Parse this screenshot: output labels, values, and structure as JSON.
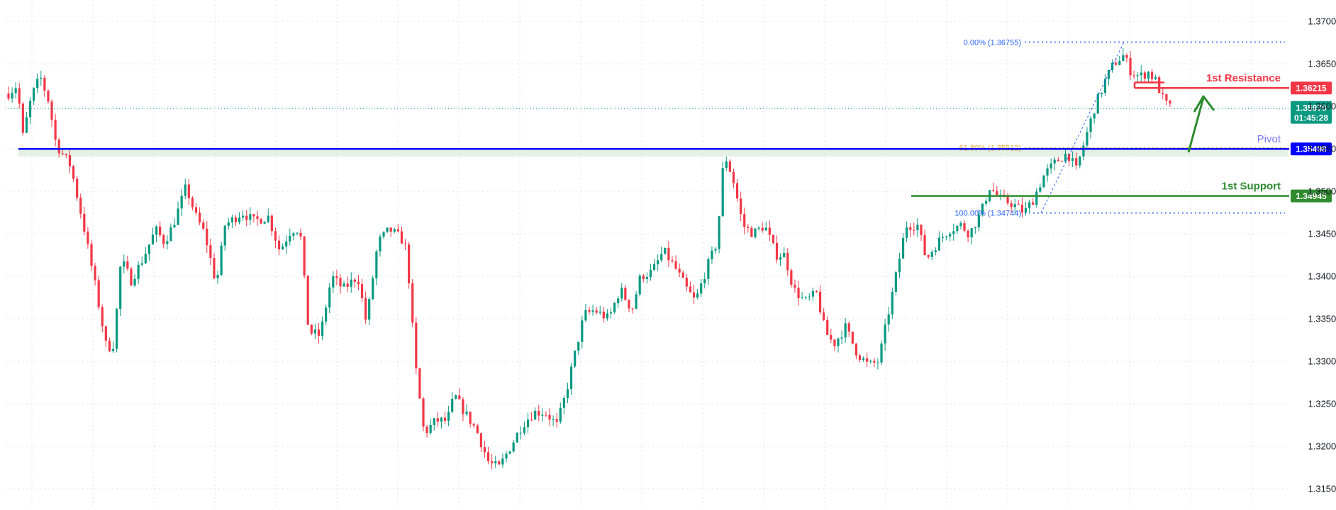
{
  "chart_data": {
    "type": "candlestick",
    "title": "",
    "xlabel": "",
    "ylabel": "",
    "ylim": [
      1.3125,
      1.3725
    ],
    "grid": true,
    "y_ticks": [
      "1.37000",
      "1.36500",
      "1.36000",
      "1.35500",
      "1.35000",
      "1.34500",
      "1.34000",
      "1.33500",
      "1.33000",
      "1.32500",
      "1.32000",
      "1.31500"
    ],
    "y_tick_values": [
      1.37,
      1.365,
      1.36,
      1.355,
      1.35,
      1.345,
      1.34,
      1.335,
      1.33,
      1.325,
      1.32,
      1.315
    ],
    "price_path": [
      [
        0,
        1.3615
      ],
      [
        0.6,
        1.3625
      ],
      [
        1.0,
        1.3565
      ],
      [
        1.6,
        1.3612
      ],
      [
        2.2,
        1.3635
      ],
      [
        2.8,
        1.3605
      ],
      [
        3.3,
        1.3555
      ],
      [
        4.3,
        1.353
      ],
      [
        5.2,
        1.346
      ],
      [
        6.0,
        1.339
      ],
      [
        6.8,
        1.3315
      ],
      [
        7.3,
        1.332
      ],
      [
        7.8,
        1.342
      ],
      [
        8.5,
        1.3395
      ],
      [
        9.3,
        1.342
      ],
      [
        10.2,
        1.3455
      ],
      [
        10.8,
        1.344
      ],
      [
        11.4,
        1.346
      ],
      [
        12.3,
        1.3505
      ],
      [
        13.0,
        1.347
      ],
      [
        13.6,
        1.345
      ],
      [
        14.4,
        1.339
      ],
      [
        15.0,
        1.346
      ],
      [
        16.2,
        1.3475
      ],
      [
        17.0,
        1.3465
      ],
      [
        18.0,
        1.347
      ],
      [
        18.8,
        1.343
      ],
      [
        19.6,
        1.3455
      ],
      [
        20.2,
        1.3455
      ],
      [
        20.8,
        1.3335
      ],
      [
        21.6,
        1.333
      ],
      [
        22.4,
        1.34
      ],
      [
        23.2,
        1.3385
      ],
      [
        24.2,
        1.34
      ],
      [
        24.8,
        1.3345
      ],
      [
        25.6,
        1.344
      ],
      [
        26.4,
        1.3455
      ],
      [
        27.2,
        1.3445
      ],
      [
        27.6,
        1.343
      ],
      [
        28.2,
        1.3295
      ],
      [
        28.8,
        1.3215
      ],
      [
        29.6,
        1.323
      ],
      [
        30.4,
        1.323
      ],
      [
        30.9,
        1.326
      ],
      [
        31.6,
        1.324
      ],
      [
        32.4,
        1.322
      ],
      [
        33.3,
        1.318
      ],
      [
        34.0,
        1.3175
      ],
      [
        34.8,
        1.32
      ],
      [
        35.6,
        1.3225
      ],
      [
        36.4,
        1.324
      ],
      [
        37.2,
        1.324
      ],
      [
        38.0,
        1.3225
      ],
      [
        38.6,
        1.326
      ],
      [
        39.2,
        1.3305
      ],
      [
        39.9,
        1.3355
      ],
      [
        40.6,
        1.336
      ],
      [
        41.6,
        1.335
      ],
      [
        42.4,
        1.3385
      ],
      [
        43.2,
        1.336
      ],
      [
        43.8,
        1.34
      ],
      [
        44.6,
        1.3405
      ],
      [
        45.4,
        1.343
      ],
      [
        46.2,
        1.341
      ],
      [
        47.0,
        1.3385
      ],
      [
        47.6,
        1.337
      ],
      [
        48.4,
        1.341
      ],
      [
        49.1,
        1.344
      ],
      [
        49.6,
        1.3545
      ],
      [
        50.2,
        1.3515
      ],
      [
        50.9,
        1.346
      ],
      [
        51.6,
        1.345
      ],
      [
        52.4,
        1.346
      ],
      [
        53.2,
        1.3425
      ],
      [
        53.8,
        1.3425
      ],
      [
        54.4,
        1.3385
      ],
      [
        55.2,
        1.337
      ],
      [
        56.0,
        1.338
      ],
      [
        56.6,
        1.3335
      ],
      [
        57.2,
        1.332
      ],
      [
        58.0,
        1.334
      ],
      [
        58.8,
        1.331
      ],
      [
        59.6,
        1.3295
      ],
      [
        60.3,
        1.33
      ],
      [
        60.9,
        1.335
      ],
      [
        61.5,
        1.34
      ],
      [
        62.2,
        1.346
      ],
      [
        63.0,
        1.346
      ],
      [
        63.6,
        1.342
      ],
      [
        64.4,
        1.344
      ],
      [
        65.2,
        1.3455
      ],
      [
        66.0,
        1.346
      ],
      [
        66.6,
        1.345
      ],
      [
        67.4,
        1.3475
      ],
      [
        68.0,
        1.3505
      ],
      [
        68.8,
        1.349
      ],
      [
        69.6,
        1.3485
      ],
      [
        70.4,
        1.3475
      ],
      [
        71.0,
        1.349
      ],
      [
        71.8,
        1.352
      ],
      [
        72.6,
        1.3535
      ],
      [
        73.4,
        1.3545
      ],
      [
        74.0,
        1.3525
      ],
      [
        74.6,
        1.356
      ],
      [
        75.3,
        1.36
      ],
      [
        76.0,
        1.363
      ],
      [
        76.6,
        1.365
      ],
      [
        77.3,
        1.366
      ],
      [
        77.8,
        1.364
      ],
      [
        78.4,
        1.3635
      ],
      [
        79.0,
        1.364
      ],
      [
        79.5,
        1.363
      ],
      [
        80.1,
        1.3605
      ],
      [
        80.6,
        1.3597
      ]
    ],
    "horizontal_levels": [
      {
        "name": "1st Resistance",
        "value": "1.36215",
        "color": "#f23645"
      },
      {
        "name": "Pivot",
        "value": "1.35498",
        "color": "#0000ff",
        "label_color": "#7b7bff"
      },
      {
        "name": "1st Support",
        "value": "1.34945",
        "color": "#2e8b2e"
      }
    ],
    "fibonacci": [
      {
        "label": "0.00% (1.36755)",
        "value": 1.36755,
        "color": "#2962ff"
      },
      {
        "label": "61.80% (1.35512)",
        "value": 1.35512,
        "color": "#e6a23c"
      },
      {
        "label": "100.00% (1.34744)",
        "value": 1.34744,
        "color": "#2962ff"
      }
    ],
    "current_price": {
      "value": "1.35970",
      "countdown": "01:45:28",
      "color": "#089981"
    },
    "colors": {
      "up": "#089981",
      "down": "#f23645",
      "grid": "#e0e3eb",
      "axis_text": "#131722",
      "zone": "#d4e8d4"
    }
  }
}
